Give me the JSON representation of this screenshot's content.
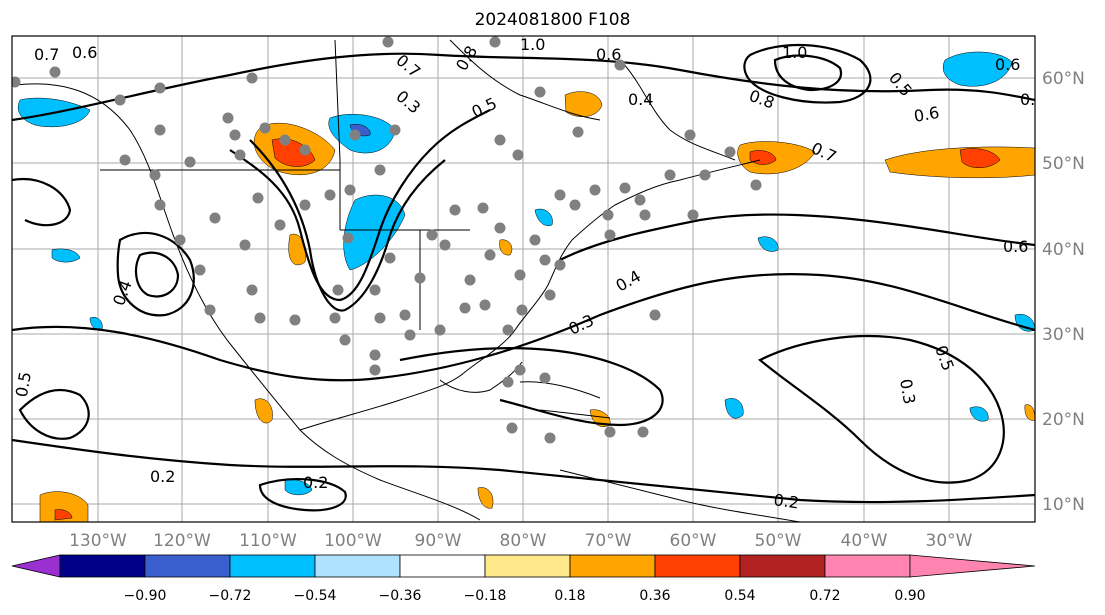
{
  "title": "2024081800 F108",
  "lon_labels": [
    "130°W",
    "120°W",
    "110°W",
    "100°W",
    "90°W",
    "80°W",
    "70°W",
    "60°W",
    "50°W",
    "40°W",
    "30°W"
  ],
  "lat_labels": [
    "60°N",
    "50°N",
    "40°N",
    "30°N",
    "20°N",
    "10°N"
  ],
  "contour_labels": [
    "0.7",
    "0.6",
    "0.8",
    "0.5",
    "0.4",
    "0.3",
    "0.2",
    "1.0"
  ],
  "colorbar": {
    "ticks": [
      "−0.90",
      "−0.72",
      "−0.54",
      "−0.36",
      "−0.18",
      "0.18",
      "0.36",
      "0.54",
      "0.72",
      "0.90"
    ],
    "colors": [
      "#9b30d0",
      "#00008b",
      "#3a5fcd",
      "#00bfff",
      "#b0e2ff",
      "#ffffff",
      "#ffe88a",
      "#ffa500",
      "#ff4000",
      "#b22222",
      "#ff85b0"
    ]
  }
}
